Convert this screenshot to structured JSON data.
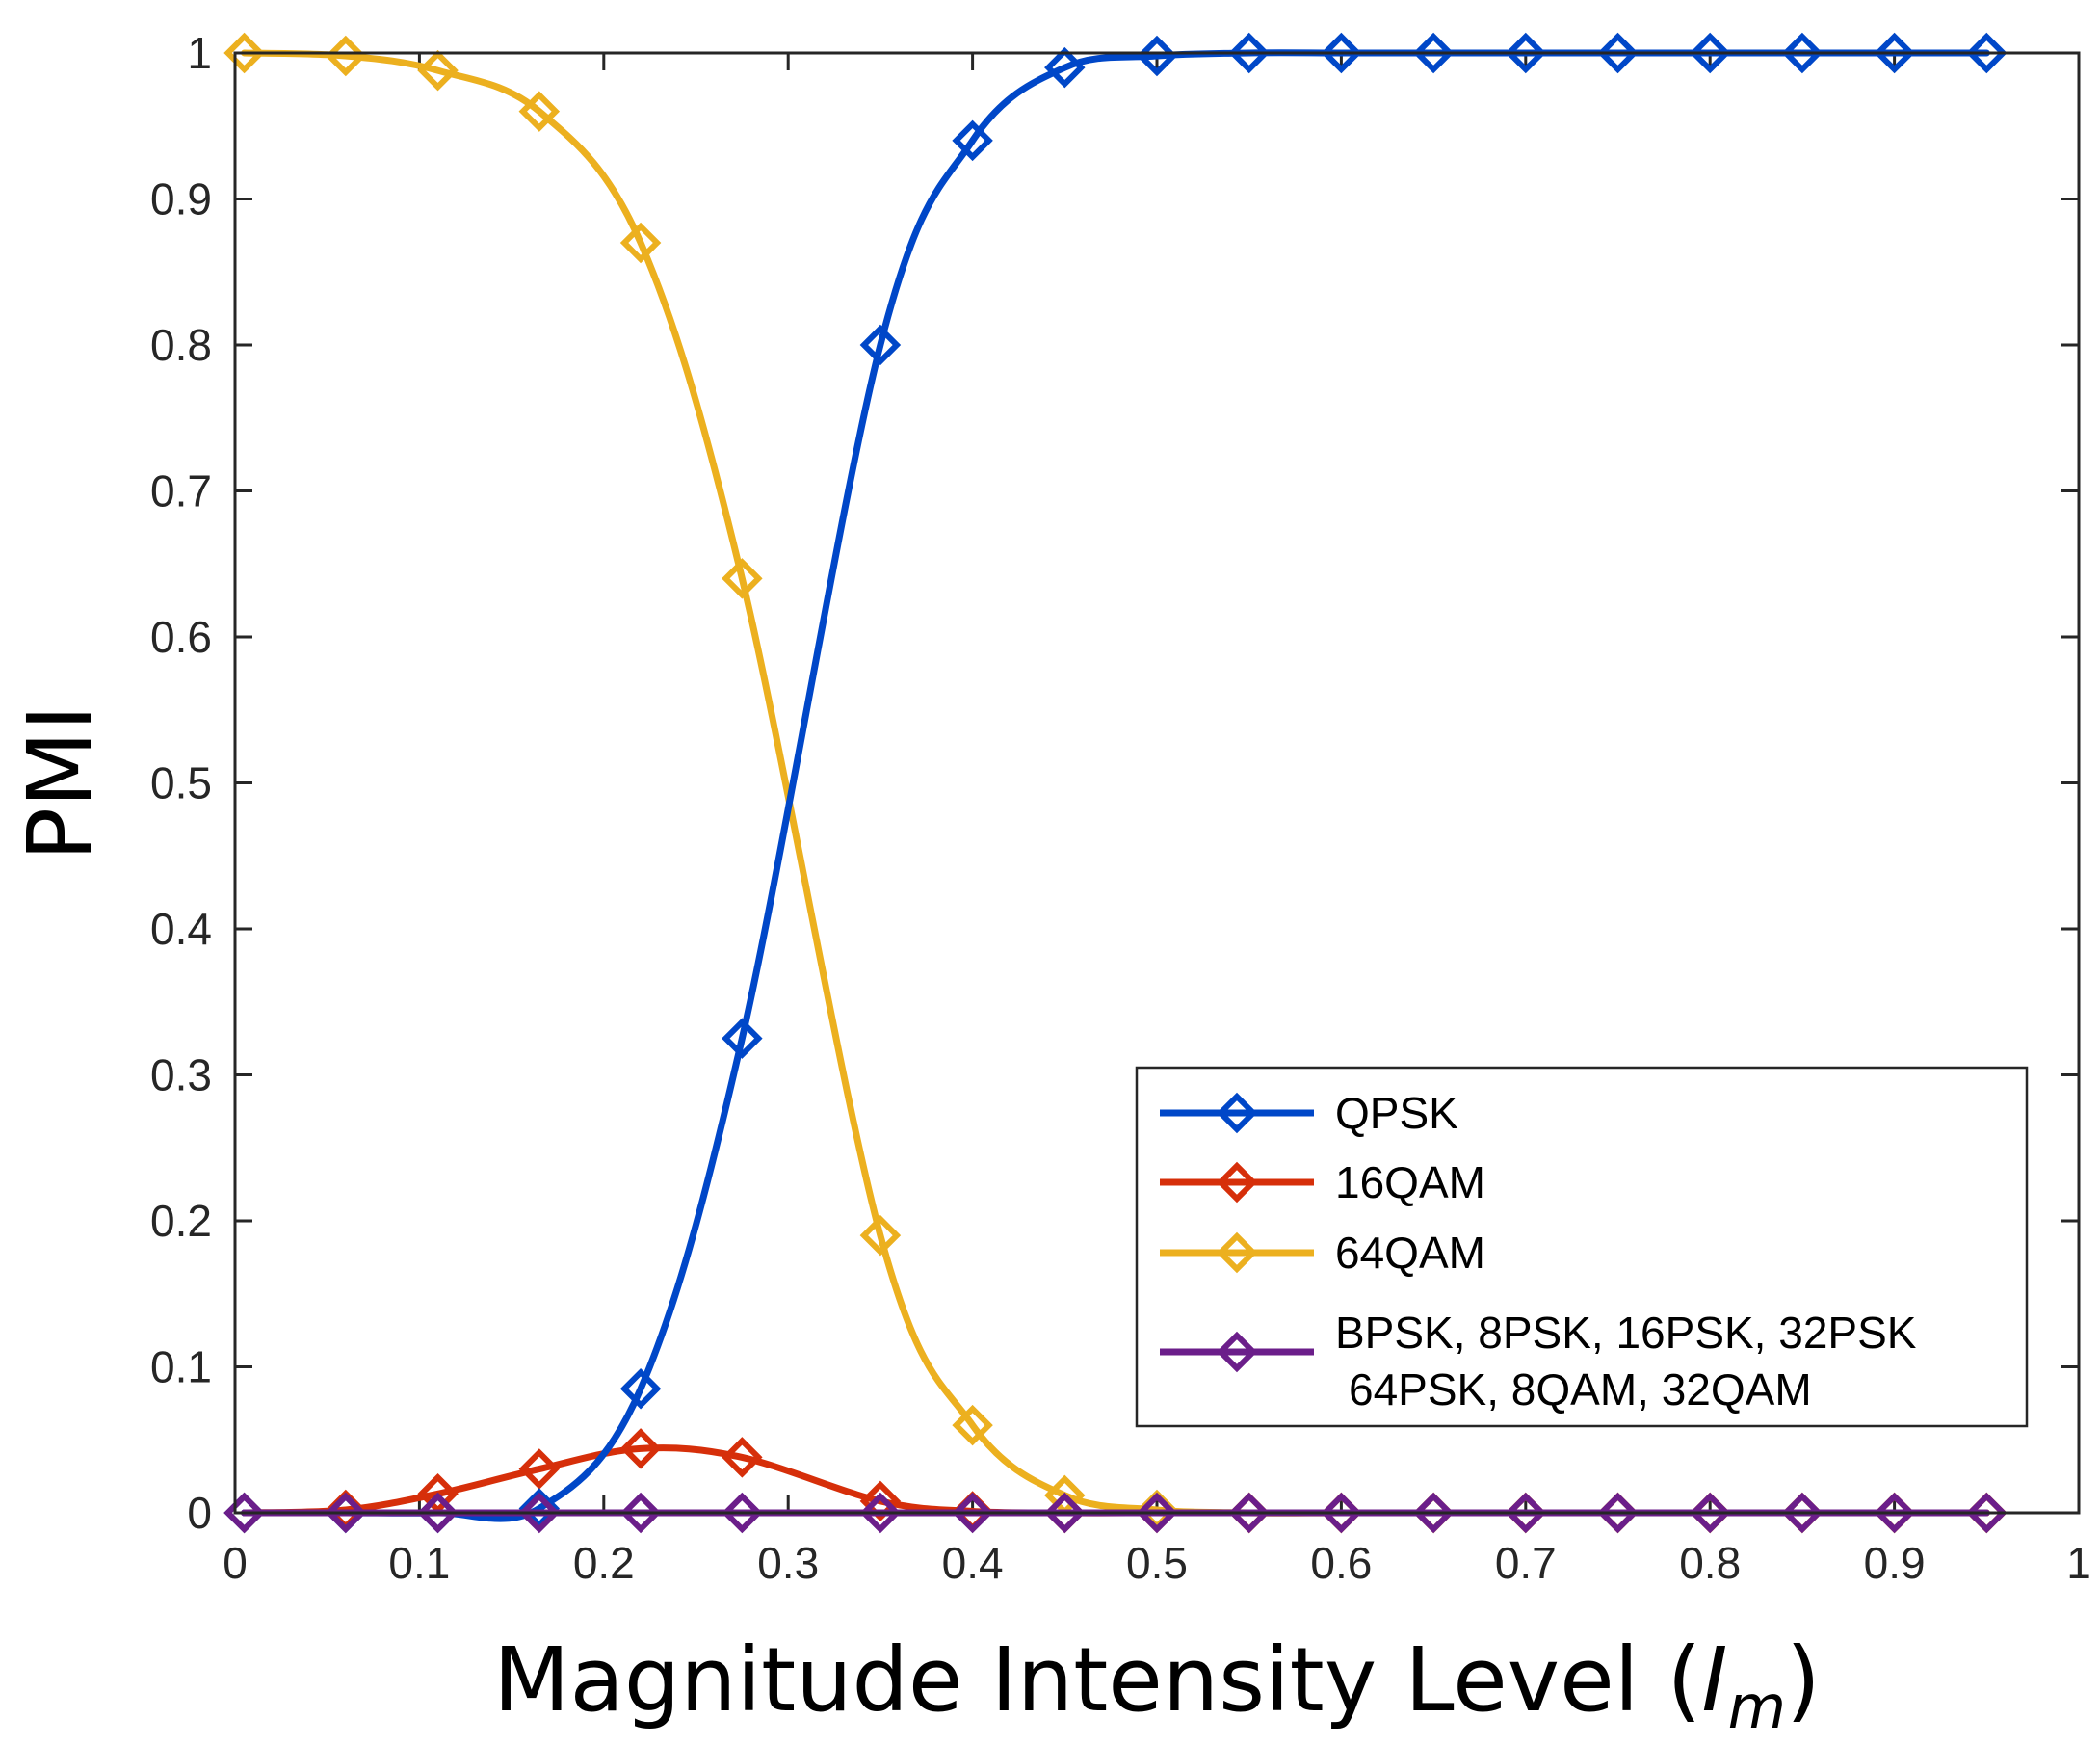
{
  "chart_data": {
    "type": "line",
    "xlabel": "Magnitude Intensity Level (",
    "xlabel_symbol": "I",
    "xlabel_subscript": "m",
    "xlabel_close": ")",
    "ylabel": "PMI",
    "xlim": [
      0,
      1
    ],
    "ylim": [
      0,
      1
    ],
    "xticks": [
      "0",
      "0.1",
      "0.2",
      "0.3",
      "0.4",
      "0.5",
      "0.6",
      "0.7",
      "0.8",
      "0.9",
      "1"
    ],
    "yticks": [
      "0",
      "0.1",
      "0.2",
      "0.3",
      "0.4",
      "0.5",
      "0.6",
      "0.7",
      "0.8",
      "0.9",
      "1"
    ],
    "grid": false,
    "legend_position": "lower-right",
    "marker": "diamond",
    "x": [
      0.005,
      0.06,
      0.11,
      0.165,
      0.22,
      0.275,
      0.35,
      0.4,
      0.45,
      0.5,
      0.55,
      0.6,
      0.65,
      0.7,
      0.75,
      0.8,
      0.85,
      0.9,
      0.95
    ],
    "series": [
      {
        "name": "QPSK",
        "color": "#0047c8",
        "values": [
          0,
          0,
          0,
          0.003,
          0.085,
          0.325,
          0.8,
          0.94,
          0.99,
          0.998,
          1,
          1,
          1,
          1,
          1,
          1,
          1,
          1,
          1
        ]
      },
      {
        "name": "16QAM",
        "color": "#d62f0a",
        "values": [
          0,
          0.002,
          0.013,
          0.03,
          0.044,
          0.038,
          0.008,
          0.001,
          0,
          0,
          0,
          0,
          0,
          0,
          0,
          0,
          0,
          0,
          0
        ]
      },
      {
        "name": "64QAM",
        "color": "#ecb01f",
        "values": [
          1,
          0.998,
          0.988,
          0.96,
          0.87,
          0.64,
          0.19,
          0.06,
          0.012,
          0.002,
          0,
          0,
          0,
          0,
          0,
          0,
          0,
          0,
          0
        ]
      },
      {
        "name": "BPSK, 8PSK, 16PSK, 32PSK",
        "name_line2": "64PSK, 8QAM, 32QAM",
        "color": "#6b1e8a",
        "values": [
          0,
          0,
          0,
          0,
          0,
          0,
          0,
          0,
          0,
          0,
          0,
          0,
          0,
          0,
          0,
          0,
          0,
          0,
          0
        ]
      }
    ]
  }
}
